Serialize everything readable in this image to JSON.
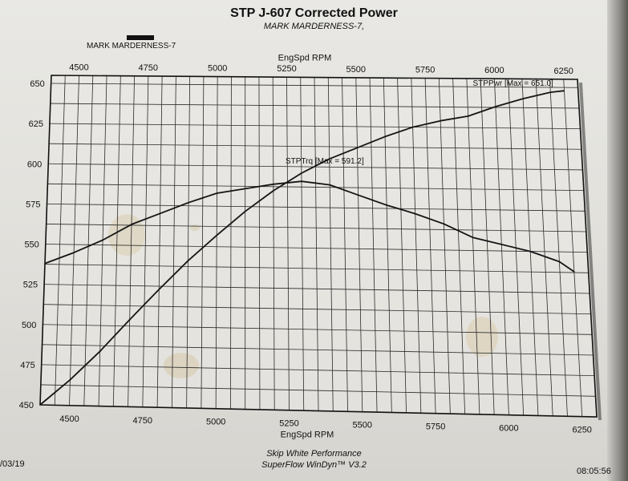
{
  "page": {
    "title": "STP J-607 Corrected Power",
    "subtitle": "MARK MARDERNESS-7,",
    "legend_label": "MARK MARDERNESS-7",
    "footer_line1": "Skip White Performance",
    "footer_line2": "SuperFlow WinDyn™ V3.2",
    "date_fragment": "/03/19",
    "time": "08:05:56"
  },
  "chart_data": {
    "type": "line",
    "title": "STP J-607 Corrected Power",
    "xlabel": "EngSpd RPM",
    "xlabel_top": "EngSpd RPM",
    "xlim": [
      4400,
      6300
    ],
    "ylim": [
      450,
      655
    ],
    "x_ticks": [
      4500,
      4750,
      5000,
      5250,
      5500,
      5750,
      6000,
      6250
    ],
    "y_ticks": [
      450,
      475,
      500,
      525,
      550,
      575,
      600,
      625,
      650
    ],
    "grid": true,
    "series": [
      {
        "name": "STPPwr [Max = 651.0]",
        "x": [
          4400,
          4500,
          4600,
          4700,
          4800,
          4900,
          5000,
          5100,
          5200,
          5300,
          5400,
          5500,
          5600,
          5700,
          5800,
          5900,
          6000,
          6100,
          6200,
          6250
        ],
        "values": [
          450,
          466,
          484,
          504,
          523,
          541,
          557,
          572,
          585,
          596,
          605,
          612,
          619,
          625,
          629,
          632,
          638,
          643,
          647,
          648
        ]
      },
      {
        "name": "STPTrq [Max = 591.2]",
        "x": [
          4400,
          4500,
          4600,
          4700,
          4800,
          4900,
          5000,
          5100,
          5200,
          5300,
          5400,
          5500,
          5600,
          5700,
          5800,
          5900,
          6000,
          6100,
          6200,
          6250
        ],
        "values": [
          538,
          545,
          553,
          563,
          570,
          577,
          583,
          586,
          589,
          591,
          589,
          583,
          577,
          572,
          566,
          558,
          554,
          550,
          544,
          538
        ]
      }
    ]
  }
}
